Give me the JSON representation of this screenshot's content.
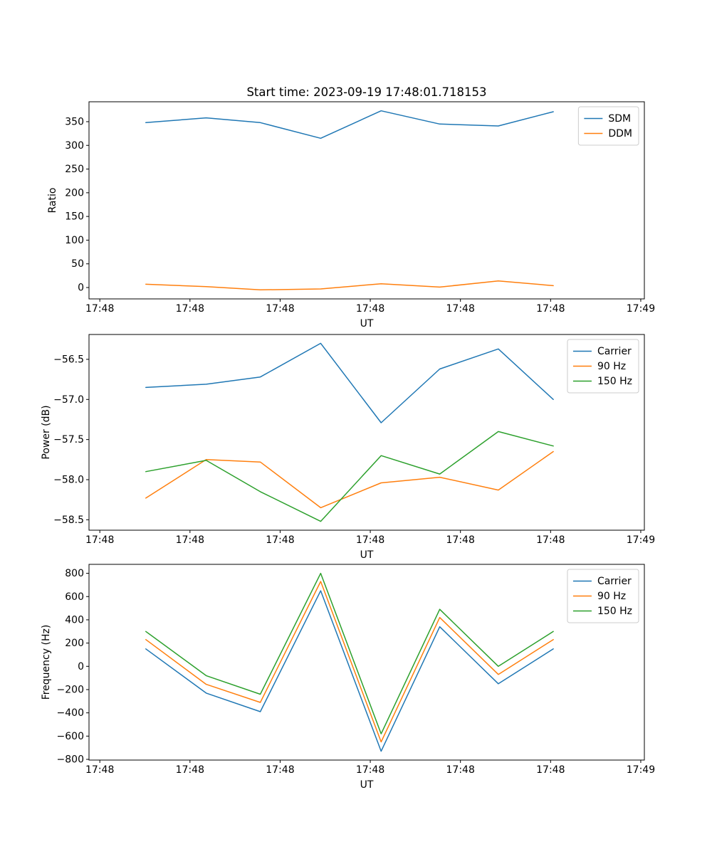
{
  "chart_data": [
    {
      "name": "ratio-chart",
      "type": "line",
      "title": "Start time: 2023-09-19 17:48:01.718153",
      "xlabel": "UT",
      "ylabel": "Ratio",
      "x_unit": "seconds after 17:48:00 UT",
      "x": [
        5.1,
        11.8,
        17.8,
        24.5,
        31.2,
        37.7,
        44.2,
        50.3
      ],
      "xlim": [
        -1.2,
        60.4
      ],
      "ylim": [
        -24,
        392
      ],
      "xticks": {
        "values": [
          0,
          10,
          20,
          30,
          40,
          50,
          60
        ],
        "labels": [
          "17:48",
          "17:48",
          "17:48",
          "17:48",
          "17:48",
          "17:48",
          "17:49"
        ]
      },
      "yticks": {
        "values": [
          0,
          50,
          100,
          150,
          200,
          250,
          300,
          350
        ],
        "labels": [
          "0",
          "50",
          "100",
          "150",
          "200",
          "250",
          "300",
          "350"
        ]
      },
      "grid": false,
      "legend_loc": "upper right",
      "series": [
        {
          "name": "SDM",
          "color": "#1f77b4",
          "values": [
            348,
            358,
            348,
            315,
            373,
            345,
            341,
            371
          ]
        },
        {
          "name": "DDM",
          "color": "#ff7f0e",
          "values": [
            7,
            2,
            -5,
            -3,
            8,
            1,
            14,
            4
          ]
        }
      ]
    },
    {
      "name": "power-chart",
      "type": "line",
      "title": "",
      "xlabel": "UT",
      "ylabel": "Power (dB)",
      "x_unit": "seconds after 17:48:00 UT",
      "x": [
        5.1,
        11.8,
        17.8,
        24.5,
        31.2,
        37.7,
        44.2,
        50.3
      ],
      "xlim": [
        -1.2,
        60.4
      ],
      "ylim": [
        -58.63,
        -56.19
      ],
      "xticks": {
        "values": [
          0,
          10,
          20,
          30,
          40,
          50,
          60
        ],
        "labels": [
          "17:48",
          "17:48",
          "17:48",
          "17:48",
          "17:48",
          "17:48",
          "17:49"
        ]
      },
      "yticks": {
        "values": [
          -58.5,
          -58.0,
          -57.5,
          -57.0,
          -56.5
        ],
        "labels": [
          "−58.5",
          "−58.0",
          "−57.5",
          "−57.0",
          "−56.5"
        ]
      },
      "grid": false,
      "legend_loc": "upper right",
      "series": [
        {
          "name": "Carrier",
          "color": "#1f77b4",
          "values": [
            -56.85,
            -56.81,
            -56.72,
            -56.3,
            -57.29,
            -56.62,
            -56.37,
            -57.0
          ]
        },
        {
          "name": "90 Hz",
          "color": "#ff7f0e",
          "values": [
            -58.23,
            -57.75,
            -57.78,
            -58.35,
            -58.04,
            -57.97,
            -58.13,
            -57.65
          ]
        },
        {
          "name": "150 Hz",
          "color": "#2ca02c",
          "values": [
            -57.9,
            -57.76,
            -58.15,
            -58.52,
            -57.7,
            -57.93,
            -57.4,
            -57.58
          ]
        }
      ]
    },
    {
      "name": "frequency-chart",
      "type": "line",
      "title": "",
      "xlabel": "UT",
      "ylabel": "Frequency (Hz)",
      "x_unit": "seconds after 17:48:00 UT",
      "x": [
        5.1,
        11.8,
        17.8,
        24.5,
        31.2,
        37.7,
        44.2,
        50.3
      ],
      "xlim": [
        -1.2,
        60.4
      ],
      "ylim": [
        -806,
        877
      ],
      "xticks": {
        "values": [
          0,
          10,
          20,
          30,
          40,
          50,
          60
        ],
        "labels": [
          "17:48",
          "17:48",
          "17:48",
          "17:48",
          "17:48",
          "17:48",
          "17:49"
        ]
      },
      "yticks": {
        "values": [
          -800,
          -600,
          -400,
          -200,
          0,
          200,
          400,
          600,
          800
        ],
        "labels": [
          "−800",
          "−600",
          "−400",
          "−200",
          "0",
          "200",
          "400",
          "600",
          "800"
        ]
      },
      "grid": false,
      "legend_loc": "upper right",
      "series": [
        {
          "name": "Carrier",
          "color": "#1f77b4",
          "values": [
            150,
            -230,
            -390,
            650,
            -730,
            340,
            -150,
            150
          ]
        },
        {
          "name": "90 Hz",
          "color": "#ff7f0e",
          "values": [
            230,
            -155,
            -310,
            730,
            -650,
            420,
            -70,
            230
          ]
        },
        {
          "name": "150 Hz",
          "color": "#2ca02c",
          "values": [
            300,
            -80,
            -240,
            800,
            -580,
            490,
            0,
            300
          ]
        }
      ]
    }
  ]
}
